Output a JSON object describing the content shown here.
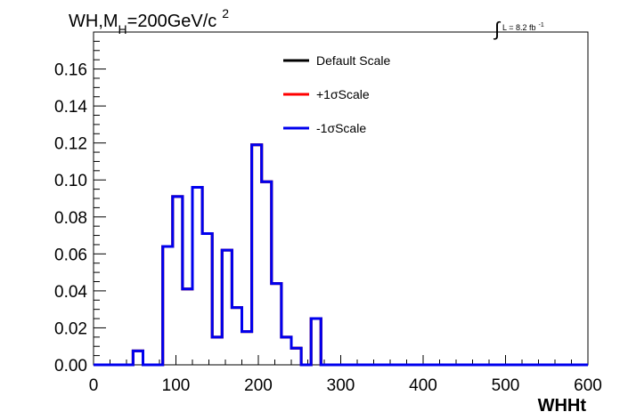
{
  "chart_data": {
    "type": "line",
    "title": "WH,M",
    "title_sub": "H",
    "title_rest": "=200GeV/c",
    "title_sup": "2",
    "luminosity": {
      "integral_symbol": "∫",
      "text": "L = 8.2 fb",
      "sup": "-1"
    },
    "xlabel": "WHHt",
    "ylabel": "",
    "xlim": [
      0,
      600
    ],
    "ylim": [
      0,
      0.18
    ],
    "xticks": [
      "0",
      "100",
      "200",
      "300",
      "400",
      "500",
      "600"
    ],
    "yticks": [
      "0.00",
      "0.02",
      "0.04",
      "0.06",
      "0.08",
      "0.10",
      "0.12",
      "0.14",
      "0.16"
    ],
    "grid": false,
    "legend_position": "top-center",
    "bin_width": 12,
    "bin_edges": [
      0,
      12,
      24,
      36,
      48,
      60,
      72,
      84,
      96,
      108,
      120,
      132,
      144,
      156,
      168,
      180,
      192,
      204,
      216,
      228,
      240,
      252,
      264,
      276,
      288,
      300,
      600
    ],
    "series": [
      {
        "name": "Default Scale",
        "color": "#000000",
        "values": [
          0,
          0,
          0,
          0,
          0.0075,
          0,
          0,
          0.064,
          0.091,
          0.041,
          0.096,
          0.071,
          0.015,
          0.062,
          0.031,
          0.018,
          0.119,
          0.099,
          0.044,
          0.015,
          0.009,
          0,
          0.025,
          0,
          0,
          0
        ]
      },
      {
        "name": "+1σScale",
        "color": "#ff0000",
        "values": [
          0,
          0,
          0,
          0,
          0.0075,
          0,
          0,
          0.064,
          0.091,
          0.041,
          0.096,
          0.071,
          0.015,
          0.062,
          0.031,
          0.018,
          0.119,
          0.099,
          0.044,
          0.015,
          0.009,
          0,
          0.025,
          0,
          0,
          0
        ]
      },
      {
        "name": "-1σScale",
        "color": "#0000ee",
        "values": [
          0,
          0,
          0,
          0,
          0.0075,
          0,
          0,
          0.064,
          0.091,
          0.041,
          0.096,
          0.071,
          0.015,
          0.062,
          0.031,
          0.018,
          0.119,
          0.099,
          0.044,
          0.015,
          0.009,
          0,
          0.025,
          0,
          0,
          0
        ]
      }
    ]
  }
}
